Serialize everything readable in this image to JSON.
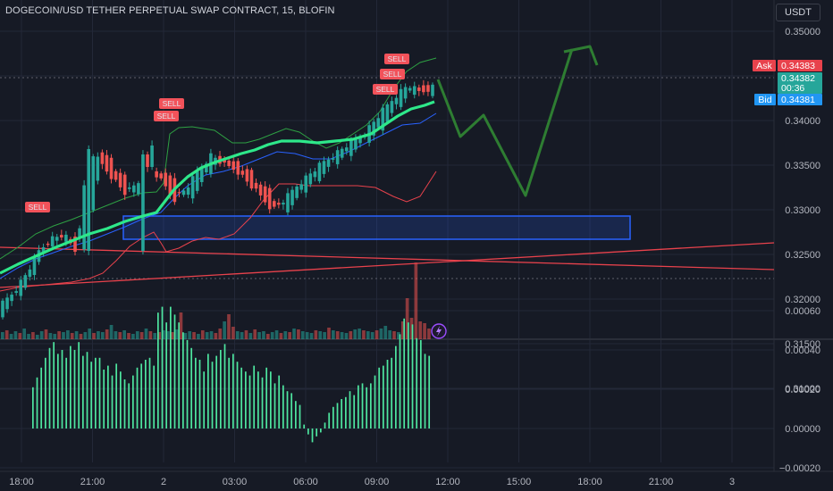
{
  "header": {
    "title": "DOGECOIN/USD TETHER PERPETUAL SWAP CONTRACT, 15, BLOFIN",
    "currency": "USDT"
  },
  "colors": {
    "background": "#161a25",
    "up": "#26a69a",
    "down": "#ef5350",
    "ema": "#2ee88a",
    "bb_mid": "#2962ff",
    "sell": "#f2525a",
    "zone": "#2962ff",
    "projection": "#2e7d32",
    "histogram": "#4ee6a0"
  },
  "price_axis": {
    "ticks": [
      "0.35000",
      "0.34500",
      "0.34000",
      "0.33500",
      "0.33000",
      "0.32500",
      "0.32000",
      "0.31500",
      "0.31000"
    ]
  },
  "osc_axis": {
    "ticks": [
      "0.00060",
      "0.00040",
      "0.00020",
      "0.00000",
      "−0.00020"
    ]
  },
  "time_axis": {
    "ticks": [
      "18:00",
      "21:00",
      "2",
      "03:00",
      "06:00",
      "09:00",
      "12:00",
      "15:00",
      "18:00",
      "21:00",
      "3"
    ]
  },
  "quote": {
    "ask_label": "Ask",
    "ask_price": "0.34383",
    "last_price": "0.34382",
    "countdown": "00:36",
    "bid_label": "Bid",
    "bid_price": "0.34381"
  },
  "signals": {
    "sell_label": "SELL"
  },
  "chart_data": [
    {
      "type": "candlestick",
      "title": "DOGECOIN/USD TETHER PERPETUAL SWAP CONTRACT, 15, BLOFIN",
      "xlabel": "",
      "ylabel": "",
      "x_range": [
        "18:00",
        "3"
      ],
      "ylim": [
        0.3095,
        0.3525
      ],
      "close_estimates": [
        [
          0.3185,
          0.3195
        ],
        [
          0.32,
          0.321
        ],
        [
          0.3215,
          0.323
        ],
        [
          0.3245,
          0.3255
        ],
        [
          0.3262,
          0.3268
        ],
        [
          0.327,
          0.3272
        ],
        [
          0.3268,
          0.3252
        ],
        [
          0.3254,
          0.3368
        ],
        [
          0.3368,
          0.3352
        ],
        [
          0.335,
          0.3335
        ],
        [
          0.3335,
          0.3318
        ],
        [
          0.3315,
          0.333
        ],
        [
          0.333,
          0.3348
        ],
        [
          0.3348,
          0.333
        ],
        [
          0.333,
          0.3312
        ],
        [
          0.3312,
          0.3325
        ],
        [
          0.3325,
          0.3345
        ],
        [
          0.3345,
          0.3362
        ],
        [
          0.3362,
          0.335
        ],
        [
          0.335,
          0.3345
        ],
        [
          0.3345,
          0.333
        ],
        [
          0.333,
          0.3315
        ],
        [
          0.3315,
          0.33
        ],
        [
          0.33,
          0.3312
        ],
        [
          0.3312,
          0.3328
        ],
        [
          0.3328,
          0.334
        ],
        [
          0.334,
          0.3352
        ],
        [
          0.3352,
          0.3362
        ],
        [
          0.3362,
          0.3372
        ],
        [
          0.3372,
          0.338
        ],
        [
          0.338,
          0.3395
        ],
        [
          0.3395,
          0.3412
        ],
        [
          0.3412,
          0.3428
        ],
        [
          0.3428,
          0.344
        ],
        [
          0.344,
          0.3431
        ],
        [
          0.3431,
          0.3438
        ]
      ],
      "sell_signals": 6,
      "volume_peak_time": "11:00",
      "support_zone": [
        0.3267,
        0.3293
      ],
      "projection_path": [
        {
          "time": "12:00",
          "price": 0.3437
        },
        {
          "time": "13:00",
          "price": 0.3363
        },
        {
          "time": "14:00",
          "price": 0.3392
        },
        {
          "time": "15:30",
          "price": 0.3284
        },
        {
          "time": "18:00",
          "price": 0.3481
        },
        {
          "time": "18:00",
          "price": 0.3468
        }
      ],
      "bid": 0.34381,
      "ask": 0.34383,
      "last": 0.34382
    },
    {
      "type": "bar",
      "title": "",
      "xlabel": "",
      "ylabel": "",
      "ylim": [
        -0.00028,
        0.00062
      ],
      "values": [
        0.00021,
        0.00026,
        0.00031,
        0.00036,
        0.00041,
        0.00044,
        0.00038,
        0.0004,
        0.00036,
        0.00042,
        0.0004,
        0.00044,
        0.00037,
        0.00039,
        0.00034,
        0.00036,
        0.00036,
        0.0003,
        0.00032,
        0.00027,
        0.00033,
        0.00029,
        0.00025,
        0.00023,
        0.00027,
        0.00031,
        0.00033,
        0.00035,
        0.00036,
        0.00032,
        0.00059,
        0.00062,
        0.00054,
        0.00062,
        0.00058,
        0.00054,
        0.00049,
        0.00045,
        0.00041,
        0.00036,
        0.00035,
        0.00029,
        0.00038,
        0.00034,
        0.00037,
        0.0004,
        0.00043,
        0.00036,
        0.00038,
        0.00034,
        0.00031,
        0.00029,
        0.00027,
        0.00032,
        0.00029,
        0.00026,
        0.00031,
        0.00029,
        0.00023,
        0.00027,
        0.00022,
        0.00019,
        0.00018,
        0.00014,
        0.00012,
        2e-05,
        -3e-05,
        -7e-05,
        -4e-05,
        -2e-05,
        3e-05,
        8e-05,
        0.00011,
        0.00013,
        0.00015,
        0.00016,
        0.00019,
        0.00017,
        0.00022,
        0.00023,
        0.00021,
        0.00023,
        0.00027,
        0.00031,
        0.00032,
        0.00035,
        0.00036,
        0.00042,
        0.00048,
        0.00056,
        0.00054,
        0.00053,
        0.00046,
        0.00045,
        0.00038,
        0.00037
      ]
    }
  ]
}
